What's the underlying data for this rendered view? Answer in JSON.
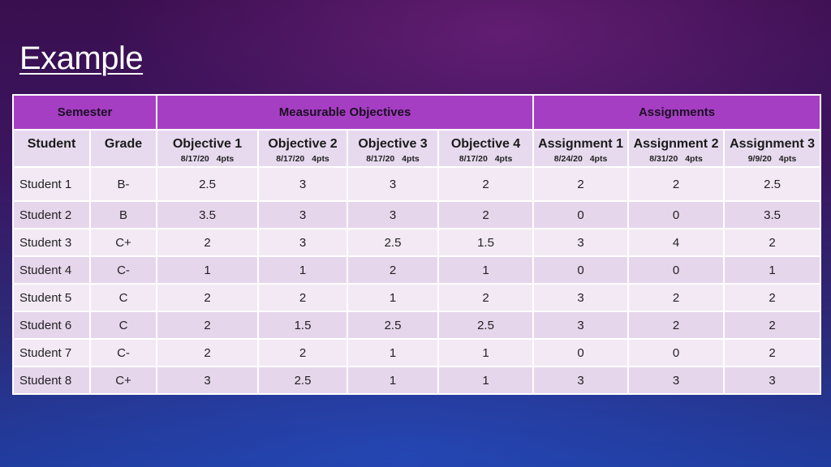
{
  "slide": {
    "title": "Example"
  },
  "table": {
    "groups": {
      "semester": "Semester",
      "objectives": "Measurable Objectives",
      "assignments": "Assignments"
    },
    "columns": [
      {
        "label": "Student",
        "sub": ""
      },
      {
        "label": "Grade",
        "sub": ""
      },
      {
        "label": "Objective 1",
        "sub": "8/17/20 4pts"
      },
      {
        "label": "Objective 2",
        "sub": "8/17/20 4pts"
      },
      {
        "label": "Objective 3",
        "sub": "8/17/20 4pts"
      },
      {
        "label": "Objective 4",
        "sub": "8/17/20 4pts"
      },
      {
        "label": "Assignment 1",
        "sub": "8/24/20 4pts"
      },
      {
        "label": "Assignment 2",
        "sub": "8/31/20 4pts"
      },
      {
        "label": "Assignment 3",
        "sub": "9/9/20 4pts"
      }
    ],
    "rows": [
      [
        "Student 1",
        "B-",
        "2.5",
        "3",
        "3",
        "2",
        "2",
        "2",
        "2.5"
      ],
      [
        "Student 2",
        "B",
        "3.5",
        "3",
        "3",
        "2",
        "0",
        "0",
        "3.5"
      ],
      [
        "Student 3",
        "C+",
        "2",
        "3",
        "2.5",
        "1.5",
        "3",
        "4",
        "2"
      ],
      [
        "Student 4",
        "C-",
        "1",
        "1",
        "2",
        "1",
        "0",
        "0",
        "1"
      ],
      [
        "Student 5",
        "C",
        "2",
        "2",
        "1",
        "2",
        "3",
        "2",
        "2"
      ],
      [
        "Student 6",
        "C",
        "2",
        "1.5",
        "2.5",
        "2.5",
        "3",
        "2",
        "2"
      ],
      [
        "Student 7",
        "C-",
        "2",
        "2",
        "1",
        "1",
        "0",
        "0",
        "2"
      ],
      [
        "Student 8",
        "C+",
        "3",
        "2.5",
        "1",
        "1",
        "3",
        "3",
        "3"
      ]
    ]
  }
}
